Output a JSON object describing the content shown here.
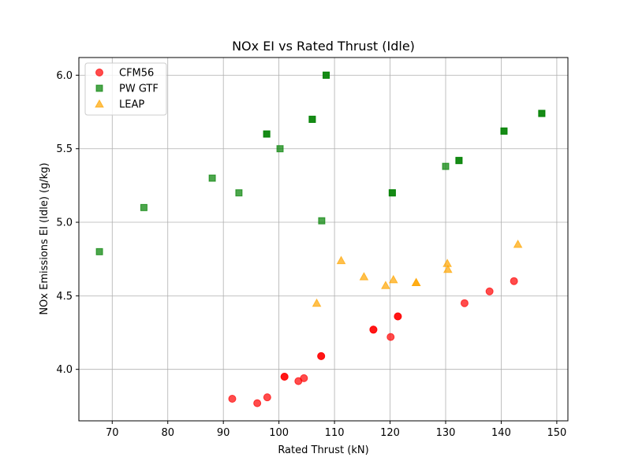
{
  "chart_data": {
    "type": "scatter",
    "title": "NOx EI vs Rated Thrust (Idle)",
    "xlabel": "Rated Thrust (kN)",
    "ylabel": "NOx Emissions EI (Idle) (g/kg)",
    "xlim": [
      64.0,
      152.0
    ],
    "ylim": [
      3.65,
      6.12
    ],
    "xticks": [
      70,
      80,
      90,
      100,
      110,
      120,
      130,
      140,
      150
    ],
    "yticks": [
      4.0,
      4.5,
      5.0,
      5.5,
      6.0
    ],
    "grid": true,
    "legend_position": "upper-left",
    "series": [
      {
        "name": "CFM56",
        "color": "#ff0000",
        "marker": "circle",
        "points": [
          [
            91.6,
            3.8
          ],
          [
            96.1,
            3.77
          ],
          [
            97.9,
            3.81
          ],
          [
            101.0,
            3.95
          ],
          [
            101.0,
            3.95
          ],
          [
            103.5,
            3.92
          ],
          [
            104.5,
            3.94
          ],
          [
            107.6,
            4.09
          ],
          [
            107.6,
            4.09
          ],
          [
            117.0,
            4.27
          ],
          [
            117.0,
            4.27
          ],
          [
            120.1,
            4.22
          ],
          [
            121.4,
            4.36
          ],
          [
            121.4,
            4.36
          ],
          [
            133.4,
            4.45
          ],
          [
            137.9,
            4.53
          ],
          [
            142.3,
            4.6
          ]
        ]
      },
      {
        "name": "PW GTF",
        "color": "#008000",
        "marker": "square",
        "points": [
          [
            67.7,
            4.8
          ],
          [
            75.7,
            5.1
          ],
          [
            88.0,
            5.3
          ],
          [
            92.8,
            5.2
          ],
          [
            97.8,
            5.6
          ],
          [
            97.8,
            5.6
          ],
          [
            100.2,
            5.5
          ],
          [
            106.0,
            5.7
          ],
          [
            106.0,
            5.7
          ],
          [
            107.7,
            5.01
          ],
          [
            108.5,
            6.0
          ],
          [
            108.5,
            6.0
          ],
          [
            120.4,
            5.2
          ],
          [
            120.4,
            5.2
          ],
          [
            130.0,
            5.38
          ],
          [
            132.4,
            5.42
          ],
          [
            132.4,
            5.42
          ],
          [
            140.5,
            5.62
          ],
          [
            140.5,
            5.62
          ],
          [
            147.3,
            5.74
          ],
          [
            147.3,
            5.74
          ]
        ]
      },
      {
        "name": "LEAP",
        "color": "#ffa500",
        "marker": "triangle",
        "points": [
          [
            106.8,
            4.45
          ],
          [
            111.2,
            4.74
          ],
          [
            115.3,
            4.63
          ],
          [
            119.2,
            4.57
          ],
          [
            120.6,
            4.61
          ],
          [
            124.7,
            4.59
          ],
          [
            124.7,
            4.59
          ],
          [
            130.3,
            4.72
          ],
          [
            130.4,
            4.68
          ],
          [
            143.0,
            4.85
          ]
        ]
      }
    ]
  }
}
